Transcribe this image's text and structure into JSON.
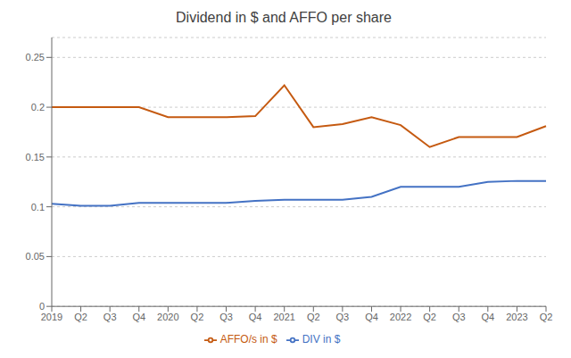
{
  "chart_data": {
    "type": "line",
    "title": "Dividend in $ and AFFO per share",
    "categories": [
      "2019",
      "Q2",
      "Q3",
      "Q4",
      "2020",
      "Q2",
      "Q3",
      "Q4",
      "2021",
      "Q2",
      "Q3",
      "Q4",
      "2022",
      "Q2",
      "Q3",
      "Q4",
      "2023",
      "Q2"
    ],
    "series": [
      {
        "name": "DIV in $",
        "color": "#4472c4",
        "values": [
          0.103,
          0.101,
          0.101,
          0.104,
          0.104,
          0.104,
          0.104,
          0.106,
          0.107,
          0.107,
          0.107,
          0.11,
          0.12,
          0.12,
          0.12,
          0.125,
          0.126,
          0.126
        ]
      },
      {
        "name": "AFFO/s in $",
        "color": "#c55a11",
        "values": [
          0.2,
          0.2,
          0.2,
          0.2,
          0.19,
          0.19,
          0.19,
          0.191,
          0.222,
          0.18,
          0.183,
          0.19,
          0.182,
          0.16,
          0.17,
          0.17,
          0.17,
          0.181
        ]
      }
    ],
    "ylim": [
      0,
      0.27
    ],
    "yticks": [
      0,
      0.05,
      0.1,
      0.15,
      0.2,
      0.25
    ],
    "grid": true,
    "legend": "bottom"
  }
}
